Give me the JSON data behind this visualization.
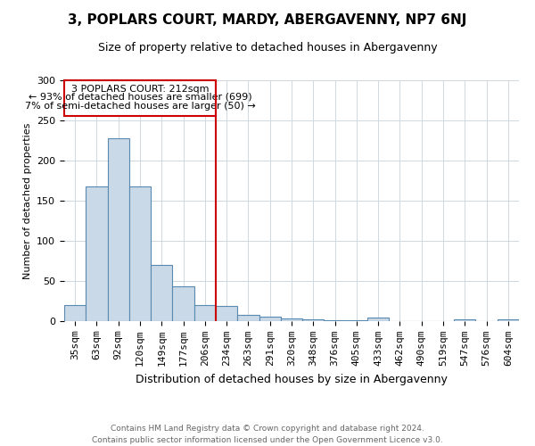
{
  "title": "3, POPLARS COURT, MARDY, ABERGAVENNY, NP7 6NJ",
  "subtitle": "Size of property relative to detached houses in Abergavenny",
  "xlabel": "Distribution of detached houses by size in Abergavenny",
  "ylabel": "Number of detached properties",
  "annotation_line1": "3 POPLARS COURT: 212sqm",
  "annotation_line2": "← 93% of detached houses are smaller (699)",
  "annotation_line3": "7% of semi-detached houses are larger (50) →",
  "footer_line1": "Contains HM Land Registry data © Crown copyright and database right 2024.",
  "footer_line2": "Contains public sector information licensed under the Open Government Licence v3.0.",
  "categories": [
    "35sqm",
    "63sqm",
    "92sqm",
    "120sqm",
    "149sqm",
    "177sqm",
    "206sqm",
    "234sqm",
    "263sqm",
    "291sqm",
    "320sqm",
    "348sqm",
    "376sqm",
    "405sqm",
    "433sqm",
    "462sqm",
    "490sqm",
    "519sqm",
    "547sqm",
    "576sqm",
    "604sqm"
  ],
  "bar_heights": [
    20,
    168,
    228,
    168,
    70,
    43,
    20,
    19,
    8,
    6,
    3,
    2,
    1,
    1,
    5,
    0,
    0,
    0,
    2,
    0,
    2
  ],
  "bar_color": "#c9d9e8",
  "bar_edge_color": "#5a8ab0",
  "vline_color": "#cc0000",
  "annotation_box_color": "#cc0000",
  "ylim": [
    0,
    300
  ],
  "background_color": "#ffffff",
  "grid_color": "#d0d8e0",
  "title_fontsize": 11,
  "subtitle_fontsize": 9,
  "ylabel_fontsize": 8,
  "xlabel_fontsize": 9,
  "tick_fontsize": 8,
  "footer_fontsize": 6.5,
  "annotation_fontsize": 8
}
